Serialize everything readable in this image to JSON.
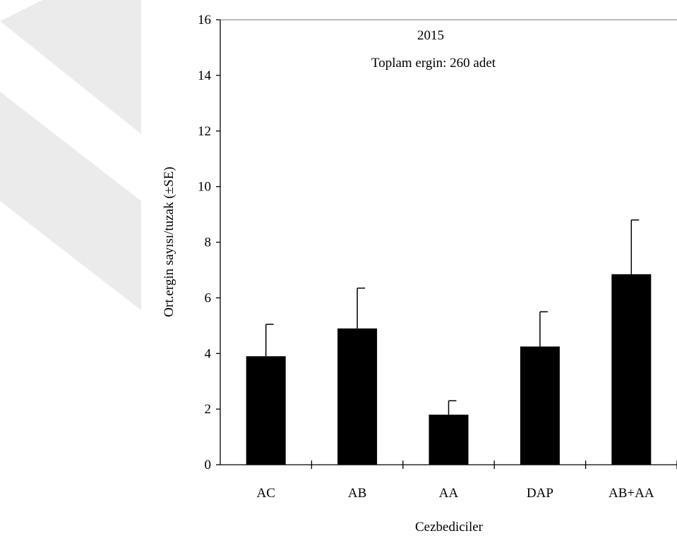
{
  "chart_data": {
    "type": "bar",
    "title": "2015",
    "subtitle": "Toplam ergin: 260 adet",
    "xlabel": "Cezbediciler",
    "ylabel": "Ort.ergin sayısı/tuzak (±SE)",
    "categories": [
      "AC",
      "AB",
      "AA",
      "DAP",
      "AB+AA"
    ],
    "values": [
      3.9,
      4.9,
      1.8,
      4.25,
      6.85
    ],
    "errors": [
      1.15,
      1.45,
      0.5,
      1.25,
      1.95
    ],
    "ylim": [
      0,
      16
    ],
    "yticks": [
      0,
      2,
      4,
      6,
      8,
      10,
      12,
      14,
      16
    ],
    "grid": false,
    "legend": "none",
    "colors": {
      "bar": "#000000",
      "axis": "#000000",
      "watermark": "#ebebeb"
    }
  }
}
